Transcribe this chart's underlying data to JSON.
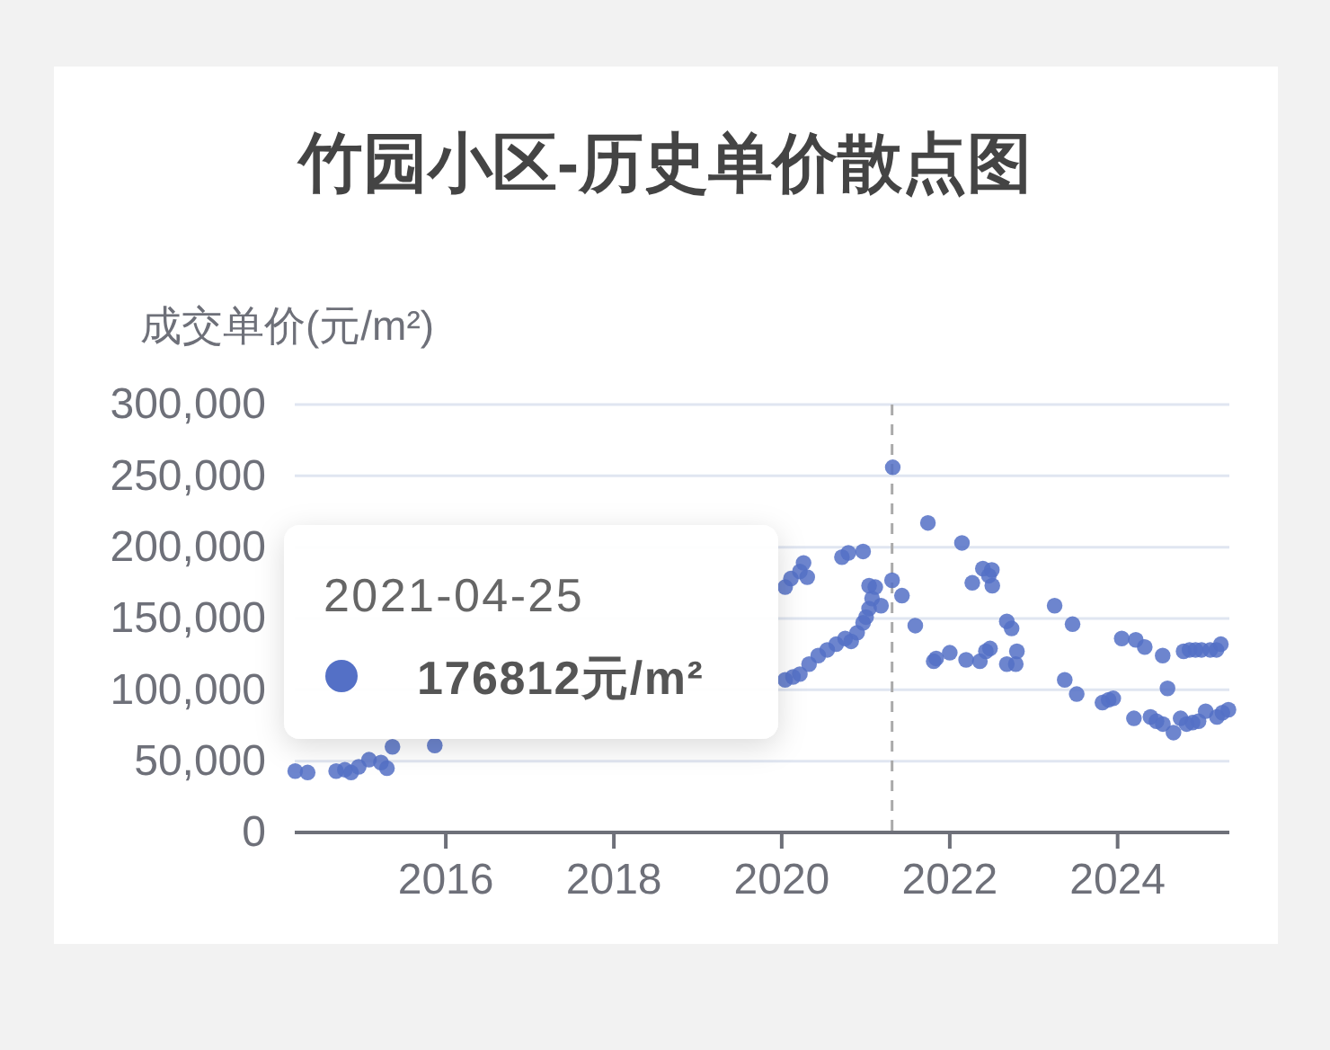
{
  "chart_data": {
    "type": "scatter",
    "title": "竹园小区-历史单价散点图",
    "ylabel": "成交单价(元/m²)",
    "x": [
      "2014-03-17",
      "2014-05-10",
      "2014-09-11",
      "2014-10-19",
      "2014-11-15",
      "2014-12-18",
      "2015-02-01",
      "2015-03-25",
      "2015-04-20",
      "2015-05-14",
      "2015-11-14",
      "2020-01-16",
      "2020-01-16",
      "2020-02-10",
      "2020-02-19",
      "2020-03-20",
      "2020-03-20",
      "2020-04-05",
      "2020-04-21",
      "2020-04-29",
      "2020-06-08",
      "2020-07-17",
      "2020-08-25",
      "2020-09-19",
      "2020-10-03",
      "2020-10-17",
      "2020-10-29",
      "2020-11-24",
      "2020-12-20",
      "2020-12-20",
      "2021-01-02",
      "2021-01-15",
      "2021-01-15",
      "2021-01-28",
      "2021-02-11",
      "2021-03-08",
      "2021-04-25",
      "2021-04-28",
      "2021-06-07",
      "2021-08-04",
      "2021-09-28",
      "2021-10-23",
      "2021-11-03",
      "2022-01-01",
      "2022-02-23",
      "2022-03-13",
      "2022-04-09",
      "2022-05-12",
      "2022-05-25",
      "2022-06-07",
      "2022-06-20",
      "2022-06-25",
      "2022-07-03",
      "2022-07-05",
      "2022-09-06",
      "2022-09-06",
      "2022-09-27",
      "2022-10-15",
      "2022-10-20",
      "2023-04-02",
      "2023-05-16",
      "2023-06-19",
      "2023-07-07",
      "2023-10-27",
      "2023-11-23",
      "2023-12-13",
      "2024-01-19",
      "2024-03-12",
      "2024-03-20",
      "2024-04-28",
      "2024-05-23",
      "2024-06-18",
      "2024-07-15",
      "2024-07-16",
      "2024-08-05",
      "2024-08-31",
      "2024-10-01",
      "2024-10-14",
      "2024-10-27",
      "2024-11-09",
      "2024-11-22",
      "2024-12-05",
      "2024-12-18",
      "2024-12-31",
      "2025-01-18",
      "2025-02-07",
      "2025-03-06",
      "2025-03-08",
      "2025-03-25",
      "2025-04-01",
      "2025-04-27"
    ],
    "values": [
      43000,
      42000,
      43000,
      44000,
      42000,
      46000,
      51000,
      49000,
      45000,
      60000,
      61000,
      172000,
      107000,
      178000,
      109000,
      183000,
      111000,
      189000,
      179000,
      118000,
      124000,
      128000,
      132000,
      193000,
      136000,
      196000,
      134000,
      140000,
      147000,
      197000,
      151000,
      157000,
      173000,
      164000,
      172000,
      159000,
      176812,
      256000,
      166000,
      145000,
      217000,
      120000,
      122000,
      126000,
      203000,
      121000,
      175000,
      120000,
      185000,
      127000,
      180000,
      129000,
      184000,
      173000,
      148000,
      118000,
      143000,
      118000,
      127000,
      159000,
      107000,
      146000,
      97000,
      91000,
      93000,
      94000,
      136000,
      80000,
      135000,
      130000,
      81000,
      78000,
      124000,
      76000,
      101000,
      70000,
      80000,
      127000,
      76000,
      128000,
      77000,
      128000,
      78000,
      128000,
      85000,
      128000,
      128000,
      81000,
      132000,
      84000,
      86000
    ],
    "color": "#5470c6",
    "marker": "circle",
    "xlim": [
      "2014-03-15",
      "2025-05-01"
    ],
    "xticks": [
      "2016",
      "2018",
      "2020",
      "2022",
      "2024"
    ],
    "ylim": [
      0,
      300000
    ],
    "yticks": [
      {
        "value": 0,
        "label": "0"
      },
      {
        "value": 50000,
        "label": "50,000"
      },
      {
        "value": 100000,
        "label": "100,000"
      },
      {
        "value": 150000,
        "label": "150,000"
      },
      {
        "value": 200000,
        "label": "200,000"
      },
      {
        "value": 250000,
        "label": "250,000"
      },
      {
        "value": 300000,
        "label": "300,000"
      }
    ],
    "grid": "y",
    "ref_lines": [
      {
        "axis": "x",
        "value": "2021-04-25",
        "color": "#aaaaaa",
        "line_style": "dashed"
      }
    ],
    "annotations": [
      "2021-04-25",
      "176812元/m²"
    ]
  }
}
